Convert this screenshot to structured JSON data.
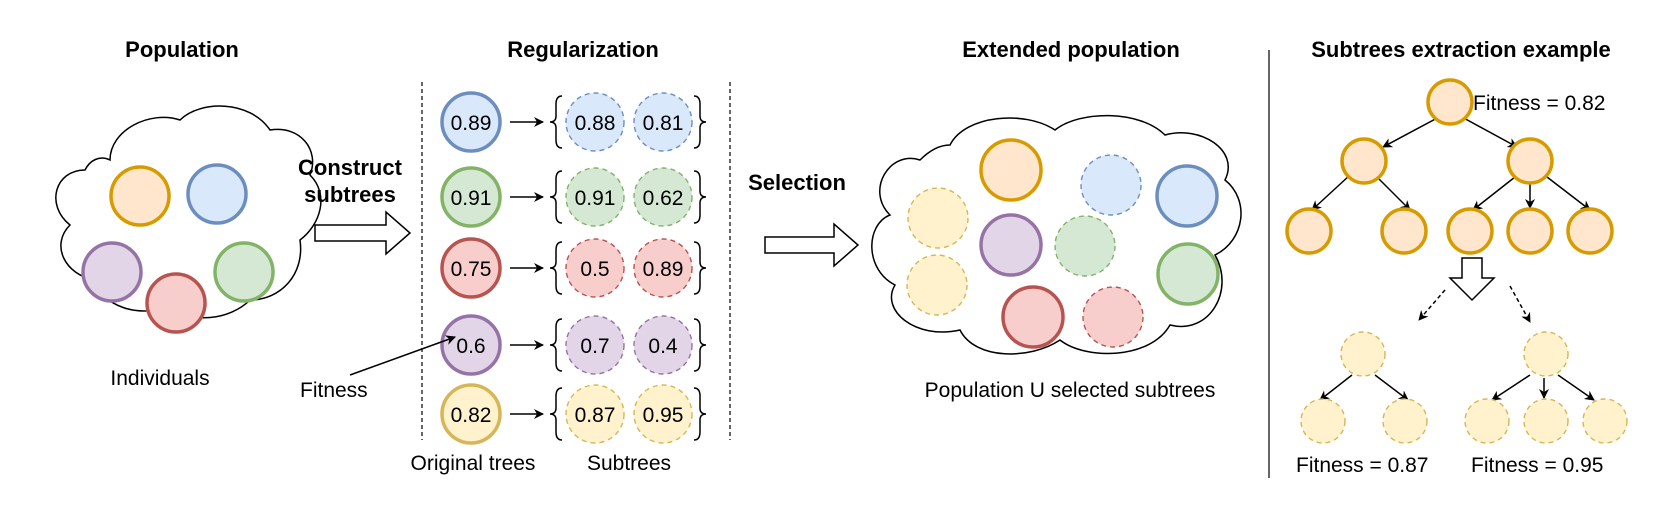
{
  "titles": {
    "population": "Population",
    "regularization": "Regularization",
    "extended": "Extended population",
    "extraction": "Subtrees extraction example"
  },
  "labels": {
    "individuals": "Individuals",
    "construct_line1": "Construct",
    "construct_line2": "subtrees",
    "fitness": "Fitness",
    "original_trees": "Original trees",
    "subtrees": "Subtrees",
    "selection": "Selection",
    "population_union": "Population U selected subtrees"
  },
  "colors": {
    "blue": {
      "fill": "#dae8fc",
      "stroke": "#6c8ebf"
    },
    "green": {
      "fill": "#d5e8d4",
      "stroke": "#82b366"
    },
    "red": {
      "fill": "#f8cecc",
      "stroke": "#b85450"
    },
    "purple": {
      "fill": "#e1d5e7",
      "stroke": "#9673a6"
    },
    "orange": {
      "fill": "#ffe6cc",
      "stroke": "#d79b00"
    },
    "yellow": {
      "fill": "#fff2cc",
      "stroke": "#d6b656"
    }
  },
  "regularization_rows": [
    {
      "color": "blue",
      "original": "0.89",
      "subtrees": [
        "0.88",
        "0.81"
      ]
    },
    {
      "color": "green",
      "original": "0.91",
      "subtrees": [
        "0.91",
        "0.62"
      ]
    },
    {
      "color": "red",
      "original": "0.75",
      "subtrees": [
        "0.5",
        "0.89"
      ]
    },
    {
      "color": "purple",
      "original": "0.6",
      "subtrees": [
        "0.7",
        "0.4"
      ]
    },
    {
      "color": "yellow",
      "original": "0.82",
      "subtrees": [
        "0.87",
        "0.95"
      ]
    }
  ],
  "extraction": {
    "root_fitness": "Fitness = 0.82",
    "subtree_fitness_left": "Fitness = 0.87",
    "subtree_fitness_right": "Fitness = 0.95"
  }
}
